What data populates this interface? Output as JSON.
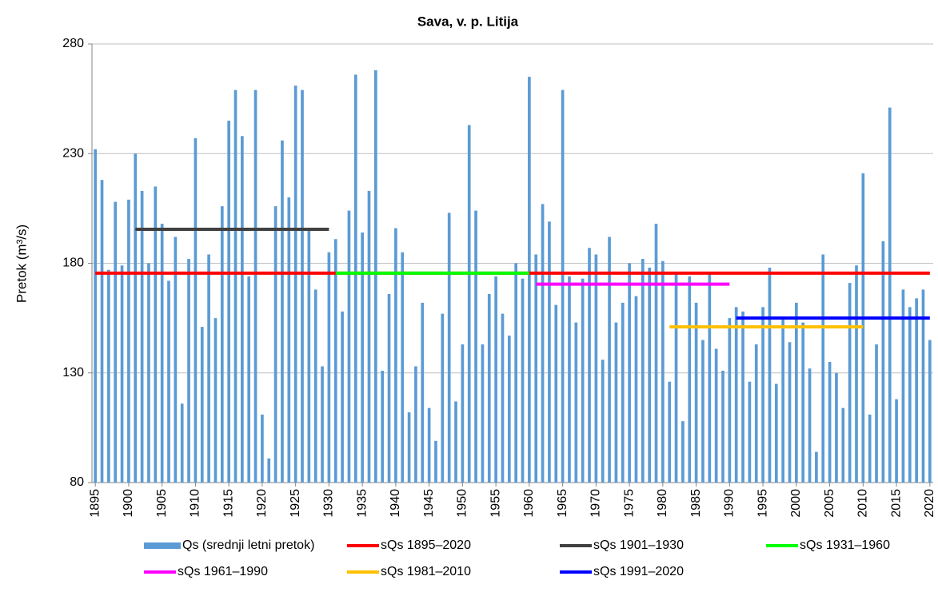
{
  "chart_data": {
    "type": "bar",
    "title": "Sava, v. p. Litija",
    "y_label": "Pretok (m³/s)",
    "x": [
      1895,
      1896,
      1897,
      1898,
      1899,
      1900,
      1901,
      1902,
      1903,
      1904,
      1905,
      1906,
      1907,
      1908,
      1909,
      1910,
      1911,
      1912,
      1913,
      1914,
      1915,
      1916,
      1917,
      1918,
      1919,
      1920,
      1921,
      1922,
      1923,
      1924,
      1925,
      1926,
      1927,
      1928,
      1929,
      1930,
      1931,
      1932,
      1933,
      1934,
      1935,
      1936,
      1937,
      1938,
      1939,
      1940,
      1941,
      1942,
      1943,
      1944,
      1945,
      1946,
      1947,
      1948,
      1949,
      1950,
      1951,
      1952,
      1953,
      1954,
      1955,
      1956,
      1957,
      1958,
      1959,
      1960,
      1961,
      1962,
      1963,
      1964,
      1965,
      1966,
      1967,
      1968,
      1969,
      1970,
      1971,
      1972,
      1973,
      1974,
      1975,
      1976,
      1977,
      1978,
      1979,
      1980,
      1981,
      1982,
      1983,
      1984,
      1985,
      1986,
      1987,
      1988,
      1989,
      1990,
      1991,
      1992,
      1993,
      1994,
      1995,
      1996,
      1997,
      1998,
      1999,
      2000,
      2001,
      2002,
      2003,
      2004,
      2005,
      2006,
      2007,
      2008,
      2009,
      2010,
      2011,
      2012,
      2013,
      2014,
      2015,
      2016,
      2017,
      2018,
      2019,
      2020
    ],
    "series": [
      {
        "name": "Qs (srednji letni pretok)",
        "color": "#5b9bd5",
        "values": [
          232,
          218,
          177,
          208,
          179,
          209,
          230,
          213,
          180,
          215,
          198,
          172,
          192,
          116,
          182,
          237,
          151,
          184,
          155,
          206,
          245,
          259,
          238,
          174,
          259,
          111,
          91,
          206,
          236,
          210,
          261,
          259,
          196,
          168,
          133,
          185,
          191,
          158,
          204,
          266,
          194,
          213,
          268,
          131,
          166,
          196,
          185,
          112,
          133,
          162,
          114,
          99,
          157,
          203,
          117,
          143,
          243,
          204,
          143,
          166,
          174,
          157,
          147,
          180,
          173,
          265,
          184,
          207,
          199,
          161,
          259,
          174,
          153,
          173,
          187,
          184,
          136,
          192,
          153,
          162,
          180,
          165,
          182,
          178,
          198,
          181,
          126,
          176,
          108,
          174,
          162,
          145,
          175,
          141,
          131,
          155,
          160,
          158,
          126,
          143,
          160,
          178,
          125,
          155,
          144,
          162,
          153,
          132,
          94,
          184,
          135,
          130,
          114,
          171,
          179,
          221,
          111,
          143,
          190,
          251,
          118,
          168,
          160,
          164,
          168,
          145
        ]
      }
    ],
    "reference_lines": [
      {
        "name": "sQs 1895–2020",
        "color": "#ff0000",
        "x": [
          1895,
          2020
        ],
        "value": 175.5
      },
      {
        "name": "sQs 1901–1930",
        "color": "#404040",
        "x": [
          1901,
          1930
        ],
        "value": 195.5
      },
      {
        "name": "sQs 1931–1960",
        "color": "#00ff00",
        "x": [
          1931,
          1960
        ],
        "value": 175.5
      },
      {
        "name": "sQs 1961–1990",
        "color": "#ff00ff",
        "x": [
          1961,
          1990
        ],
        "value": 170.5
      },
      {
        "name": "sQs 1981–2010",
        "color": "#ffc000",
        "x": [
          1981,
          2010
        ],
        "value": 151
      },
      {
        "name": "sQs 1991–2020",
        "color": "#0000ff",
        "x": [
          1991,
          2020
        ],
        "value": 155
      }
    ],
    "xlim": [
      1894.5,
      2020.5
    ],
    "xticks": [
      1895,
      1900,
      1905,
      1910,
      1915,
      1920,
      1925,
      1930,
      1935,
      1940,
      1945,
      1950,
      1955,
      1960,
      1965,
      1970,
      1975,
      1980,
      1985,
      1990,
      1995,
      2000,
      2005,
      2010,
      2015,
      2020
    ],
    "ylim": [
      80,
      280
    ],
    "yticks": [
      80,
      130,
      180,
      230,
      280
    ],
    "grid": true
  }
}
